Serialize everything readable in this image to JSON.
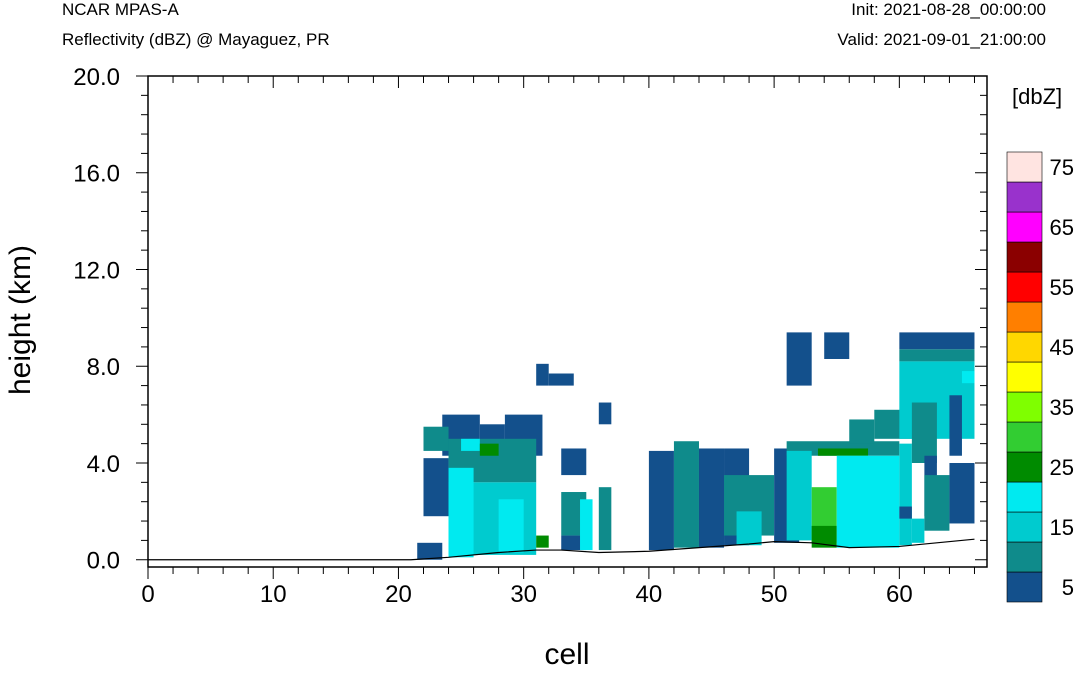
{
  "header": {
    "model": "NCAR MPAS-A",
    "field": "Reflectivity (dBZ) @ Mayaguez, PR",
    "init": "Init: 2021-08-28_00:00:00",
    "valid": "Valid: 2021-09-01_21:00:00"
  },
  "chart_data": {
    "type": "heatmap",
    "xlabel": "cell",
    "ylabel": "height (km)",
    "xlim": [
      0,
      67
    ],
    "ylim": [
      -0.3,
      20
    ],
    "xticks": [
      "0",
      "10",
      "20",
      "30",
      "40",
      "50",
      "60"
    ],
    "yticks": [
      "0.0",
      "4.0",
      "8.0",
      "12.0",
      "16.0",
      "20.0"
    ],
    "colorbar": {
      "unit": "[dbZ]",
      "levels": [
        5,
        10,
        15,
        20,
        25,
        30,
        35,
        40,
        45,
        50,
        55,
        60,
        65,
        70,
        75
      ],
      "labels": [
        "5",
        "15",
        "25",
        "35",
        "45",
        "55",
        "65",
        "75"
      ],
      "colors": [
        "#13508c",
        "#0f8b8b",
        "#00cbcf",
        "#00eaf0",
        "#008b00",
        "#32cd32",
        "#7fff00",
        "#ffff00",
        "#ffd700",
        "#ff7f00",
        "#ff0000",
        "#8b0000",
        "#ff00ff",
        "#9932cc",
        "#ffe4e1"
      ]
    },
    "terrain_km": [
      [
        0,
        0
      ],
      [
        21,
        0
      ],
      [
        24,
        0.1
      ],
      [
        28,
        0.3
      ],
      [
        31,
        0.4
      ],
      [
        33,
        0.4
      ],
      [
        36,
        0.3
      ],
      [
        40,
        0.35
      ],
      [
        44,
        0.5
      ],
      [
        48,
        0.65
      ],
      [
        50,
        0.75
      ],
      [
        53,
        0.7
      ],
      [
        56,
        0.5
      ],
      [
        60,
        0.55
      ],
      [
        63,
        0.7
      ],
      [
        66,
        0.85
      ]
    ],
    "reflectivity_dbz": [
      [
        21.5,
        23.5,
        0.0,
        0.7,
        5
      ],
      [
        23.5,
        26.5,
        4.3,
        6.0,
        5
      ],
      [
        26.5,
        28.5,
        4.3,
        5.6,
        5
      ],
      [
        28.5,
        31.5,
        4.3,
        6.0,
        5
      ],
      [
        22,
        24,
        4.5,
        5.5,
        10
      ],
      [
        22,
        24,
        1.8,
        4.2,
        5
      ],
      [
        24,
        31,
        3.2,
        5.0,
        10
      ],
      [
        24,
        31,
        0.2,
        3.2,
        15
      ],
      [
        24,
        26,
        0.1,
        3.8,
        20
      ],
      [
        25,
        26.5,
        4.5,
        5.0,
        20
      ],
      [
        26.5,
        28,
        4.3,
        4.8,
        25
      ],
      [
        28,
        30,
        0.3,
        2.5,
        20
      ],
      [
        31,
        32,
        0.5,
        1.0,
        25
      ],
      [
        31,
        32,
        7.2,
        8.1,
        5
      ],
      [
        32,
        34,
        7.2,
        7.7,
        5
      ],
      [
        33,
        35,
        3.5,
        4.6,
        5
      ],
      [
        33,
        35,
        1.0,
        2.8,
        10
      ],
      [
        33,
        35,
        0.4,
        1.0,
        5
      ],
      [
        34.5,
        35.5,
        0.4,
        2.5,
        20
      ],
      [
        36,
        37,
        5.6,
        6.5,
        5
      ],
      [
        36,
        37,
        0.4,
        3.0,
        10
      ],
      [
        40,
        42,
        0.4,
        4.5,
        5
      ],
      [
        42,
        44,
        0.5,
        4.9,
        10
      ],
      [
        44,
        46,
        0.5,
        4.6,
        5
      ],
      [
        46,
        48,
        0.6,
        4.6,
        5
      ],
      [
        46,
        50,
        1.0,
        3.5,
        10
      ],
      [
        47,
        49,
        0.6,
        2.0,
        15
      ],
      [
        50,
        52,
        0.7,
        4.6,
        5
      ],
      [
        51,
        60,
        4.3,
        4.9,
        10
      ],
      [
        51,
        53,
        0.8,
        4.5,
        15
      ],
      [
        53,
        55,
        0.7,
        3.0,
        30
      ],
      [
        53,
        55,
        0.5,
        1.4,
        25
      ],
      [
        53.5,
        57.5,
        4.3,
        4.6,
        25
      ],
      [
        55,
        60,
        0.5,
        4.3,
        20
      ],
      [
        56,
        58,
        4.8,
        5.8,
        10
      ],
      [
        58,
        61,
        5.0,
        6.2,
        10
      ],
      [
        60,
        61,
        0.6,
        4.8,
        15
      ],
      [
        51,
        53,
        7.2,
        9.4,
        5
      ],
      [
        54,
        56,
        8.3,
        9.4,
        5
      ],
      [
        60,
        66,
        8.7,
        9.4,
        5
      ],
      [
        60,
        66,
        8.2,
        8.7,
        10
      ],
      [
        60,
        66,
        5.0,
        8.2,
        15
      ],
      [
        61,
        63,
        4.0,
        6.5,
        10
      ],
      [
        62,
        63,
        1.8,
        4.3,
        5
      ],
      [
        62,
        64,
        1.2,
        3.5,
        10
      ],
      [
        64,
        66,
        1.5,
        4.0,
        5
      ],
      [
        64,
        65,
        4.3,
        6.8,
        5
      ],
      [
        65,
        66,
        7.3,
        7.8,
        20
      ],
      [
        61,
        62,
        0.7,
        1.7,
        15
      ],
      [
        60,
        61,
        1.7,
        2.2,
        5
      ]
    ]
  }
}
